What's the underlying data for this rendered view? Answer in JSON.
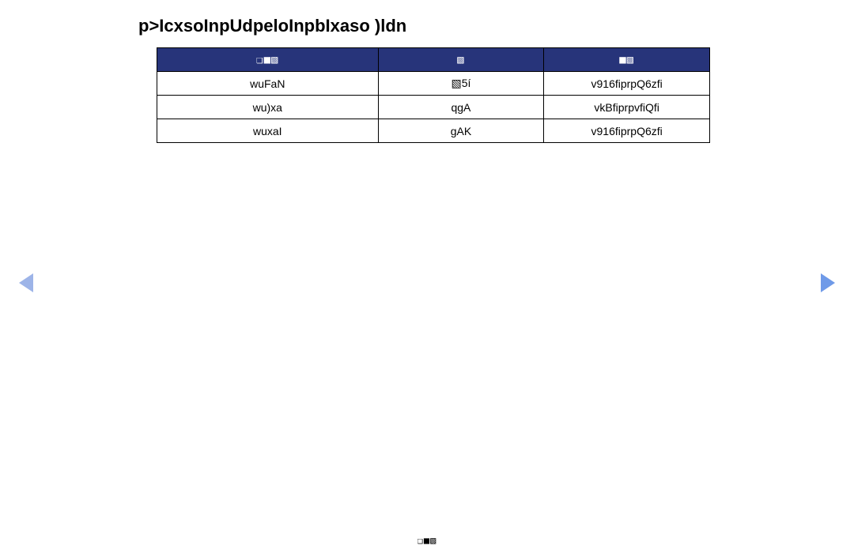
{
  "page": {
    "title": "p>IcxsoInpUdpeloInpbIxaso )ldn",
    "footer": "❏■▧"
  },
  "table": {
    "headers": [
      "❏■▧",
      "▧",
      "■▧"
    ],
    "rows": [
      [
        "wuFaN",
        "▧5í",
        "v916fiprpQ6zfi"
      ],
      [
        "wu)xa",
        "qgA",
        "vkBfiprpvfiQfi"
      ],
      [
        "wuxaI",
        "gAK",
        "v916fiprpQ6zfi"
      ]
    ],
    "colWidths": [
      "40%",
      "30%",
      "30%"
    ],
    "header_bg": "#27347a",
    "header_fg": "#ffffff",
    "cell_bg": "#ffffff",
    "cell_fg": "#000000",
    "border_color": "#000000",
    "font_size": 14
  },
  "nav": {
    "left_color": "#9db4e8",
    "right_color": "#6f9ae8"
  }
}
